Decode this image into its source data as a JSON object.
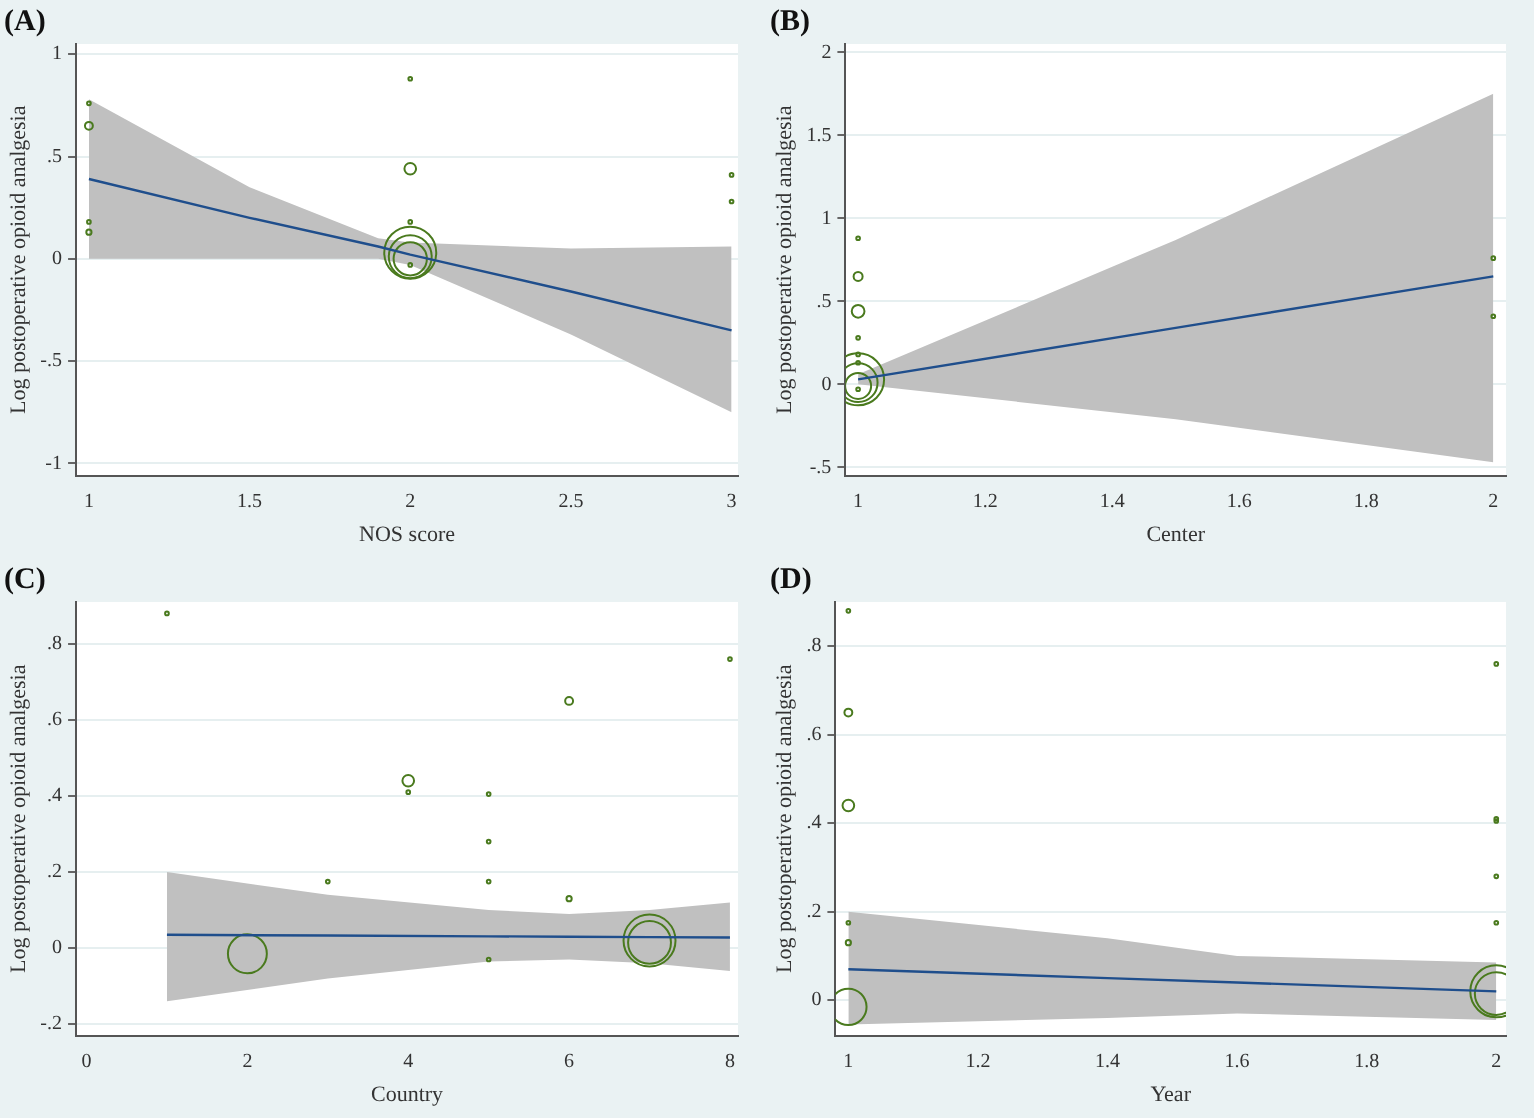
{
  "chart_data": [
    {
      "type": "bubble",
      "title": "(A)",
      "xlabel": "NOS score",
      "ylabel": "Log postoperative opioid analgesia",
      "xlim": [
        0.96,
        3.02
      ],
      "xticks": [
        1,
        1.5,
        2,
        2.5,
        3
      ],
      "ylim": [
        -1.06,
        1.05
      ],
      "yticks": [
        -1,
        {
          "value": -0.5,
          "label": "-.5"
        },
        0,
        {
          "value": 0.5,
          "label": ".5"
        },
        1
      ],
      "grid": "y",
      "series": [
        {
          "color": "#4a7a1e",
          "x": [
            1,
            1,
            1,
            1,
            2,
            2,
            2,
            2,
            2,
            2,
            2,
            3,
            3
          ],
          "values": [
            0.76,
            0.65,
            0.18,
            0.13,
            0.88,
            0.44,
            0.18,
            0.03,
            0.01,
            0.0,
            -0.03,
            0.41,
            0.28
          ],
          "sizes": [
            0.005,
            0.023,
            0.005,
            0.01,
            0.005,
            0.05,
            0.005,
            1,
            0.68,
            0.41,
            0.005,
            0.005,
            0.005
          ]
        },
        {
          "type": "line",
          "color": "#1f4e8c",
          "x": [
            1,
            1.5,
            1.9,
            2,
            2.5,
            3
          ],
          "values": [
            0.39,
            0.2,
            0.06,
            0.02,
            -0.16,
            -0.35
          ],
          "lower": [
            0,
            0,
            0,
            -0.03,
            -0.37,
            -0.75
          ],
          "upper": [
            0.78,
            0.35,
            0.1,
            0.08,
            0.05,
            0.06
          ]
        }
      ]
    },
    {
      "type": "bubble",
      "title": "(B)",
      "xlabel": "Center",
      "ylabel": "Log postoperative opioid analgesia",
      "xlim": [
        0.98,
        2.02
      ],
      "xticks": [
        1,
        1.2,
        1.4,
        1.6,
        1.8,
        2
      ],
      "ylim": [
        -0.55,
        2.05
      ],
      "yticks": [
        {
          "value": -0.5,
          "label": "-.5"
        },
        0,
        {
          "value": 0.5,
          "label": ".5"
        },
        1,
        1.5,
        2
      ],
      "grid": "y",
      "series": [
        {
          "color": "#4a7a1e",
          "x": [
            1,
            1,
            1,
            1,
            1,
            1,
            1,
            1,
            1,
            1,
            2,
            2
          ],
          "values": [
            0.88,
            0.65,
            0.44,
            0.28,
            0.18,
            0.13,
            0.03,
            0.01,
            -0.01,
            -0.03,
            0.76,
            0.41
          ],
          "sizes": [
            0.005,
            0.03,
            0.06,
            0.005,
            0.005,
            0.005,
            1,
            0.56,
            0.25,
            0.005,
            0.005,
            0.005
          ]
        },
        {
          "type": "line",
          "color": "#1f4e8c",
          "x": [
            1,
            1.5,
            2
          ],
          "values": [
            0.03,
            0.34,
            0.65
          ],
          "lower": [
            0,
            -0.21,
            -0.47
          ],
          "upper": [
            0.06,
            0.87,
            1.75
          ]
        }
      ]
    },
    {
      "type": "bubble",
      "title": "(C)",
      "xlabel": "Country",
      "ylabel": "Log postoperative opioid analgesia",
      "xlim": [
        -0.13,
        8.1
      ],
      "xticks": [
        0,
        2,
        4,
        6,
        8
      ],
      "ylim": [
        -0.23,
        0.91
      ],
      "yticks": [
        {
          "value": -0.2,
          "label": "-.2"
        },
        0,
        {
          "value": 0.2,
          "label": ".2"
        },
        {
          "value": 0.4,
          "label": ".4"
        },
        {
          "value": 0.6,
          "label": ".6"
        },
        {
          "value": 0.8,
          "label": ".8"
        }
      ],
      "grid": "y",
      "series": [
        {
          "color": "#4a7a1e",
          "x": [
            1,
            2,
            3,
            4,
            4,
            5,
            5,
            5,
            5,
            6,
            6,
            7,
            7,
            8
          ],
          "values": [
            0.88,
            -0.015,
            0.175,
            0.44,
            0.41,
            0.405,
            0.28,
            0.175,
            -0.03,
            0.65,
            0.13,
            0.02,
            0.015,
            0.76
          ],
          "sizes": [
            0.005,
            0.56,
            0.005,
            0.05,
            0.005,
            0.005,
            0.005,
            0.005,
            0.005,
            0.023,
            0.01,
            1,
            0.68,
            0.005
          ]
        },
        {
          "type": "line",
          "color": "#1f4e8c",
          "x": [
            1,
            3,
            5,
            6,
            7,
            8
          ],
          "values": [
            0.035,
            0.033,
            0.031,
            0.03,
            0.029,
            0.028
          ],
          "lower": [
            -0.14,
            -0.08,
            -0.035,
            -0.03,
            -0.04,
            -0.06
          ],
          "upper": [
            0.2,
            0.14,
            0.1,
            0.09,
            0.1,
            0.12
          ]
        }
      ]
    },
    {
      "type": "bubble",
      "title": "(D)",
      "xlabel": "Year",
      "ylabel": "Log postoperative opioid analgesia",
      "xlim": [
        0.98,
        2.015
      ],
      "xticks": [
        1,
        1.2,
        1.4,
        1.6,
        1.8,
        2
      ],
      "ylim": [
        -0.08,
        0.9
      ],
      "yticks": [
        0,
        {
          "value": 0.2,
          "label": ".2"
        },
        {
          "value": 0.4,
          "label": ".4"
        },
        {
          "value": 0.6,
          "label": ".6"
        },
        {
          "value": 0.8,
          "label": ".8"
        }
      ],
      "grid": "y",
      "series": [
        {
          "color": "#4a7a1e",
          "x": [
            1,
            1,
            1,
            1,
            1,
            1,
            2,
            2,
            2,
            2,
            2,
            2,
            2
          ],
          "values": [
            0.88,
            0.65,
            0.44,
            0.175,
            0.13,
            -0.015,
            0.76,
            0.41,
            0.405,
            0.28,
            0.175,
            0.02,
            0.015
          ],
          "sizes": [
            0.005,
            0.023,
            0.05,
            0.005,
            0.01,
            0.49,
            0.005,
            0.005,
            0.005,
            0.005,
            0.005,
            1,
            0.68
          ]
        },
        {
          "type": "line",
          "color": "#1f4e8c",
          "x": [
            1,
            1.4,
            1.6,
            2
          ],
          "values": [
            0.07,
            0.05,
            0.04,
            0.02
          ],
          "lower": [
            -0.055,
            -0.04,
            -0.03,
            -0.045
          ],
          "upper": [
            0.2,
            0.14,
            0.1,
            0.085
          ]
        }
      ]
    }
  ]
}
